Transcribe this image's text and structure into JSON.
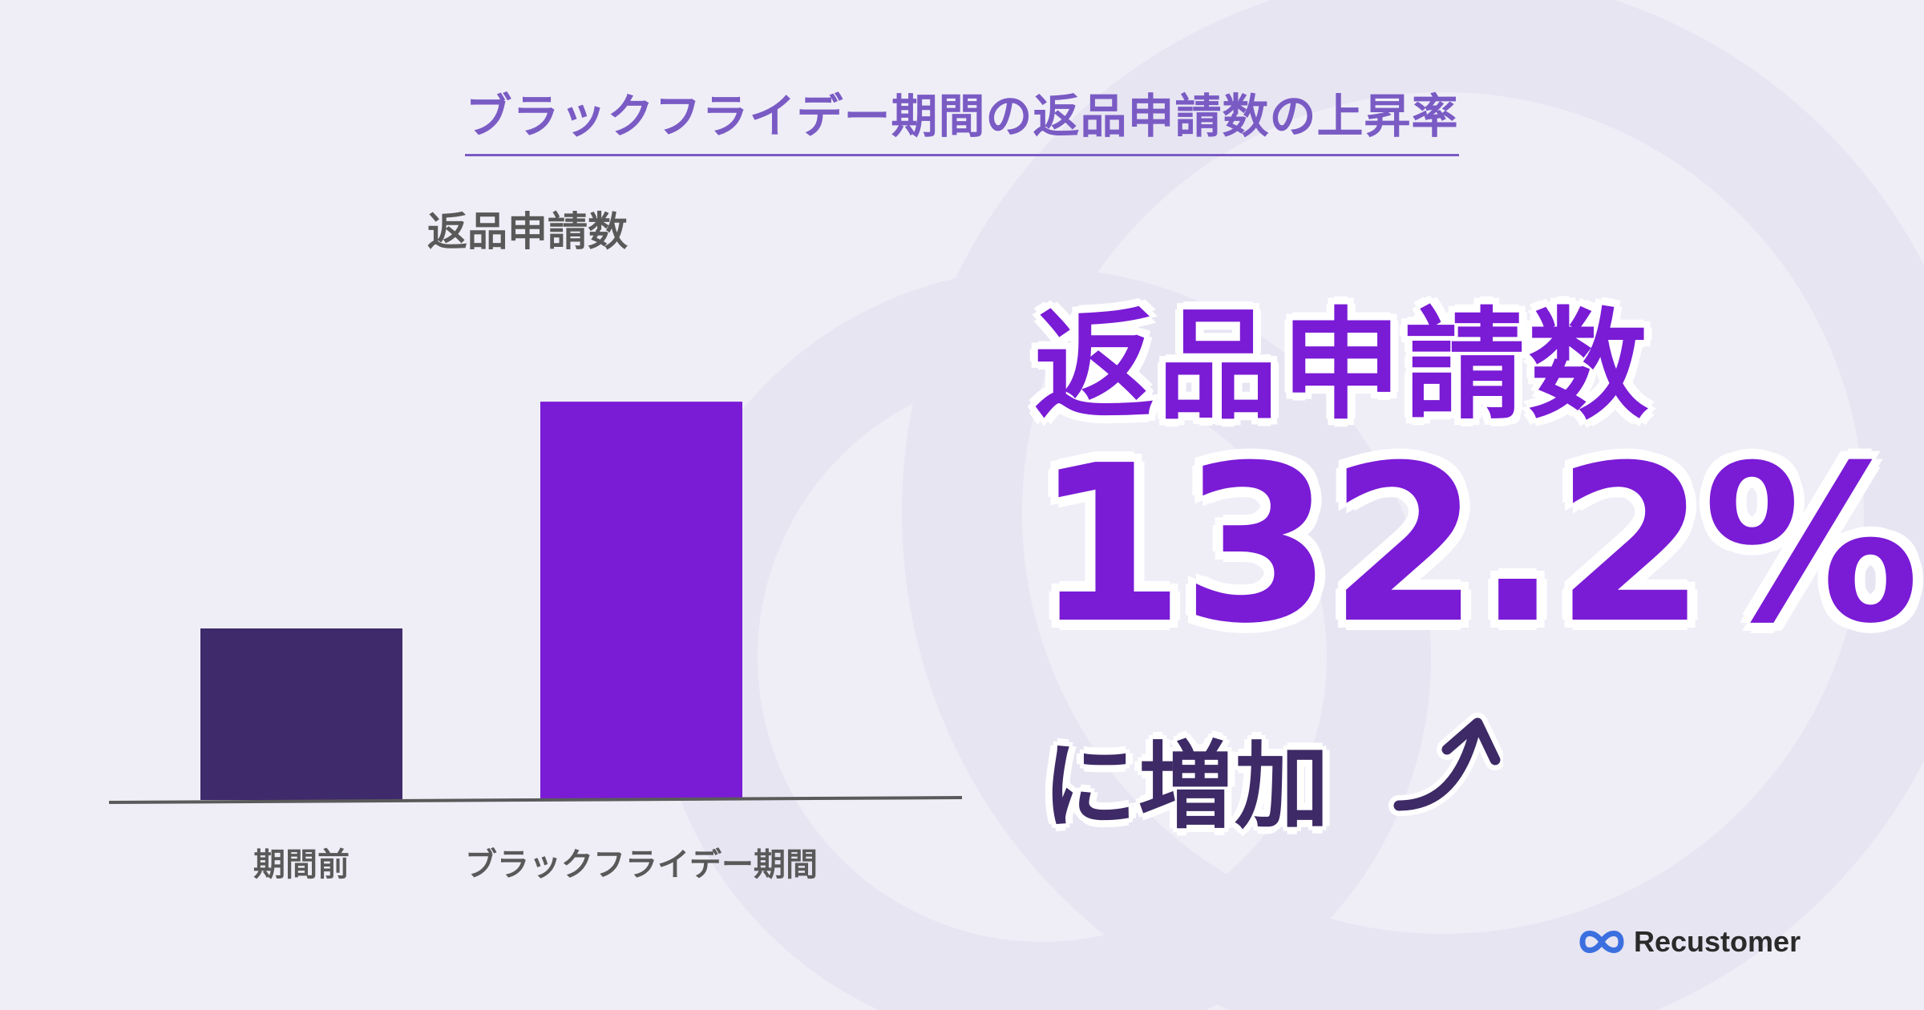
{
  "title": "ブラックフライデー期間の返品申請数の上昇率",
  "chart_data": {
    "type": "bar",
    "ylabel": "返品申請数",
    "categories": [
      "期間前",
      "ブラックフライデー期間"
    ],
    "values": [
      100,
      232.2
    ],
    "bar_colors": [
      "#3f2a6b",
      "#7a1bd6"
    ],
    "ylim": [
      0,
      250
    ],
    "grid": false,
    "legend": "none"
  },
  "headline": {
    "line1": "返品申請数",
    "line2": "132.2%",
    "line3": "に増加"
  },
  "icons": {
    "arrow": "arrow-up-icon",
    "logo": "recustomer-logo-icon"
  },
  "logo_text": "Recustomer",
  "colors": {
    "accent": "#7a1bd6",
    "dark": "#3f2a6b",
    "title": "#7a5bc4",
    "background": "#efeef7"
  }
}
